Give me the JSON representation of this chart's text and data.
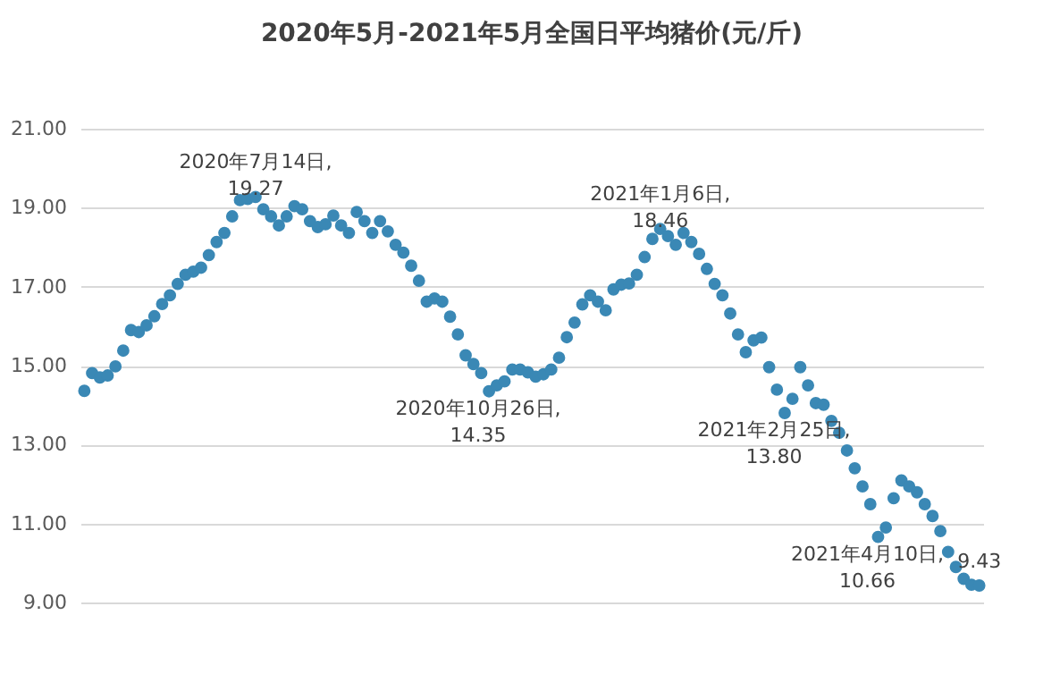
{
  "chart_data": {
    "type": "scatter",
    "title": "2020年5月-2021年5月全国日平均猪价(元/斤)",
    "categories": [
      null,
      null,
      null,
      null,
      null,
      null,
      null,
      null,
      null,
      null,
      null,
      null,
      null,
      null,
      null,
      null,
      null,
      null,
      null,
      null,
      null,
      null,
      null,
      null,
      null,
      null,
      null,
      null,
      null,
      null,
      null,
      null,
      null,
      null,
      null,
      null,
      null,
      null,
      null,
      null,
      null,
      null,
      null,
      null,
      null,
      null,
      null,
      null,
      null,
      null,
      null,
      null,
      null,
      null,
      null,
      null,
      null,
      null,
      null,
      null,
      null,
      null,
      null,
      null,
      null,
      null,
      null,
      null,
      null,
      null,
      null,
      null,
      null,
      null,
      null,
      null,
      null,
      null,
      null,
      null,
      null,
      null,
      null,
      null,
      null,
      null,
      null,
      null,
      null,
      null,
      null,
      null,
      null,
      null,
      null,
      null,
      null,
      null,
      null,
      null,
      null,
      null,
      null,
      null,
      null,
      null,
      null,
      null,
      null,
      null,
      null,
      null,
      null,
      null,
      null,
      null
    ],
    "series": [
      {
        "color": "#3a88b5",
        "values": [
          14.36,
          14.81,
          14.7,
          14.75,
          14.98,
          15.38,
          15.9,
          15.85,
          16.02,
          16.25,
          16.56,
          16.78,
          17.07,
          17.3,
          17.38,
          17.48,
          17.8,
          18.13,
          18.36,
          18.78,
          19.19,
          19.22,
          19.27,
          18.96,
          18.78,
          18.55,
          18.78,
          19.04,
          18.96,
          18.66,
          18.51,
          18.58,
          18.8,
          18.55,
          18.36,
          18.89,
          18.66,
          18.36,
          18.66,
          18.4,
          18.06,
          17.86,
          17.53,
          17.15,
          16.62,
          16.7,
          16.62,
          16.24,
          15.79,
          15.26,
          15.04,
          14.81,
          14.35,
          14.5,
          14.6,
          14.9,
          14.9,
          14.83,
          14.72,
          14.78,
          14.9,
          15.2,
          15.72,
          16.09,
          16.55,
          16.78,
          16.62,
          16.4,
          16.93,
          17.05,
          17.08,
          17.3,
          17.75,
          18.21,
          18.46,
          18.28,
          18.06,
          18.36,
          18.13,
          17.83,
          17.45,
          17.07,
          16.78,
          16.32,
          15.79,
          15.34,
          15.64,
          15.71,
          14.96,
          14.39,
          13.8,
          14.16,
          14.96,
          14.5,
          14.05,
          14.01,
          13.6,
          13.3,
          12.85,
          12.4,
          11.94,
          11.49,
          10.66,
          10.9,
          11.64,
          12.09,
          11.94,
          11.79,
          11.49,
          11.19,
          10.81,
          10.28,
          9.9,
          9.6,
          9.45,
          9.43
        ]
      }
    ],
    "ylim": [
      9,
      21
    ],
    "yticks": [
      {
        "value": 9,
        "label": "9.00"
      },
      {
        "value": 11,
        "label": "11.00"
      },
      {
        "value": 13,
        "label": "13.00"
      },
      {
        "value": 15,
        "label": "15.00"
      },
      {
        "value": 17,
        "label": "17.00"
      },
      {
        "value": 19,
        "label": "19.00"
      },
      {
        "value": 21,
        "label": "21.00"
      }
    ],
    "grid": "y",
    "marker": "circle",
    "tick_labels": "y",
    "annotations": [
      {
        "text": "2020年7月14日,\n19.27",
        "y": 19.27
      },
      {
        "text": "2020年10月26日,\n14.35",
        "y": 14.35
      },
      {
        "text": "2021年1月6日,\n18.46",
        "y": 18.46
      },
      {
        "text": "2021年2月25日,\n13.80",
        "y": 13.8
      },
      {
        "text": "2021年4月10日,\n10.66",
        "y": 10.66
      },
      {
        "text": "9.43",
        "y": 9.43
      }
    ]
  }
}
